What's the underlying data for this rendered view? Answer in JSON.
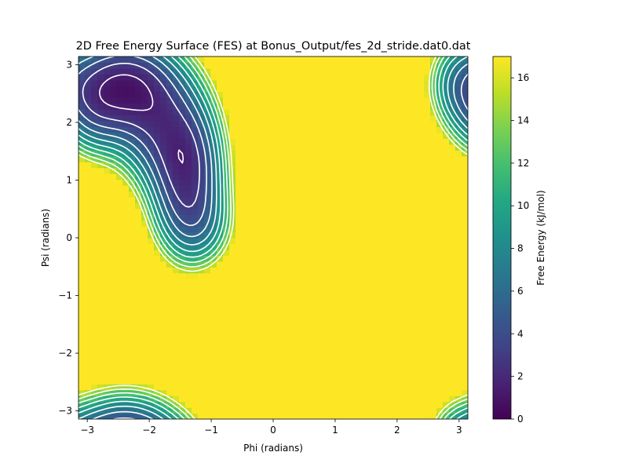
{
  "chart_data": {
    "type": "heatmap",
    "title": "2D Free Energy Surface (FES) at Bonus_Output/fes_2d_stride.dat0.dat",
    "xlabel": "Phi (radians)",
    "ylabel": "Psi (radians)",
    "colorbar_label": "Free Energy (kJ/mol)",
    "xlim": [
      -3.1416,
      3.1416
    ],
    "ylim": [
      -3.1416,
      3.1416
    ],
    "zlim": [
      0,
      17
    ],
    "x_ticks": [
      -3,
      -2,
      -1,
      0,
      1,
      2,
      3
    ],
    "x_tick_labels": [
      "−3",
      "−2",
      "−1",
      "0",
      "1",
      "2",
      "3"
    ],
    "y_ticks": [
      -3,
      -2,
      -1,
      0,
      1,
      2,
      3
    ],
    "y_tick_labels": [
      "−3",
      "−2",
      "−1",
      "0",
      "1",
      "2",
      "3"
    ],
    "colorbar_ticks": [
      0,
      2,
      4,
      6,
      8,
      10,
      12,
      14,
      16
    ],
    "colorbar_tick_labels": [
      "0",
      "2",
      "4",
      "6",
      "8",
      "10",
      "12",
      "14",
      "16"
    ],
    "colormap": "viridis",
    "contour_color": "#ffffff",
    "grid": false,
    "contour_levels": [
      1.5,
      3,
      4.5,
      6,
      7.5,
      9,
      10.5,
      12,
      13.5,
      15
    ],
    "basins": [
      {
        "phi": -2.45,
        "psi": 2.65,
        "energy": 0.0
      },
      {
        "phi": -1.45,
        "psi": 1.05,
        "energy": 1.8
      }
    ],
    "cap": 17
  }
}
